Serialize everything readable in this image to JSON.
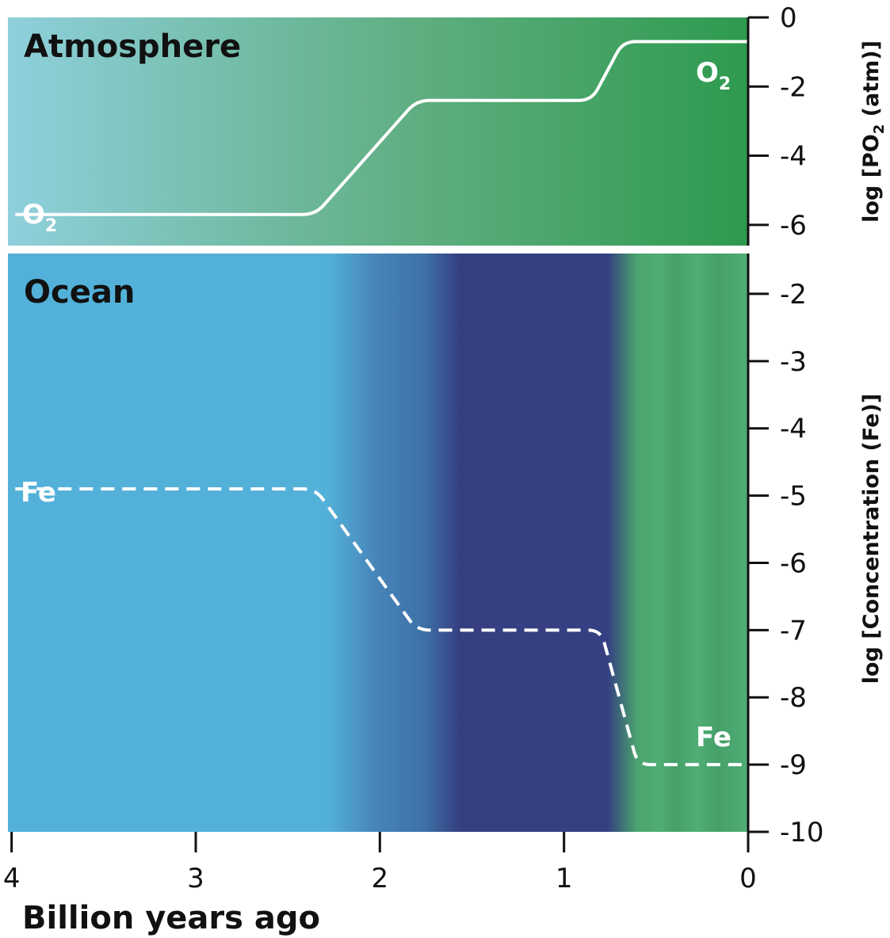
{
  "chart_data": [
    {
      "type": "line",
      "panel_title": "Atmosphere",
      "ylabel_prefix": "log [PO",
      "ylabel_sub": "2",
      "ylabel_suffix": " (atm)]",
      "ylim": [
        -6.6,
        0
      ],
      "yticks": [
        0,
        -2,
        -4,
        -6
      ],
      "ytick_labels": [
        "0",
        "-2",
        "-4",
        "-6"
      ],
      "series": [
        {
          "label_main": "O",
          "label_sub": "2",
          "x": [
            3.98,
            2.35,
            1.8,
            0.85,
            0.68,
            0.0
          ],
          "y": [
            -5.7,
            -5.7,
            -2.4,
            -2.4,
            -0.7,
            -0.7
          ],
          "line_style": "solid",
          "color": "#ffffff"
        }
      ],
      "background_colors": [
        "#8fd0dc",
        "#5fae81",
        "#2e9a4e"
      ]
    },
    {
      "type": "line",
      "panel_title": "Ocean",
      "ylabel": "log [Concentration (Fe)]",
      "ylim": [
        -10,
        -1.4
      ],
      "yticks": [
        -2,
        -3,
        -4,
        -5,
        -6,
        -7,
        -8,
        -9,
        -10
      ],
      "ytick_labels": [
        "-2",
        "-3",
        "-4",
        "-5",
        "-6",
        "-7",
        "-8",
        "-9",
        "-10"
      ],
      "series": [
        {
          "label": "Fe",
          "x": [
            3.98,
            2.35,
            1.8,
            0.8,
            0.6,
            0.0
          ],
          "y": [
            -4.9,
            -4.9,
            -7.0,
            -7.0,
            -9.0,
            -9.0
          ],
          "line_style": "dashed",
          "color": "#ffffff"
        }
      ],
      "background_colors": [
        "#53b1d9",
        "#3e72a8",
        "#353f82",
        "#4aa46e"
      ]
    }
  ],
  "x_axis": {
    "label": "Billion years ago",
    "xlim": [
      4.02,
      0
    ],
    "ticks": [
      4,
      3,
      2,
      1,
      0
    ],
    "tick_labels": [
      "4",
      "3",
      "2",
      "1",
      "0"
    ]
  }
}
